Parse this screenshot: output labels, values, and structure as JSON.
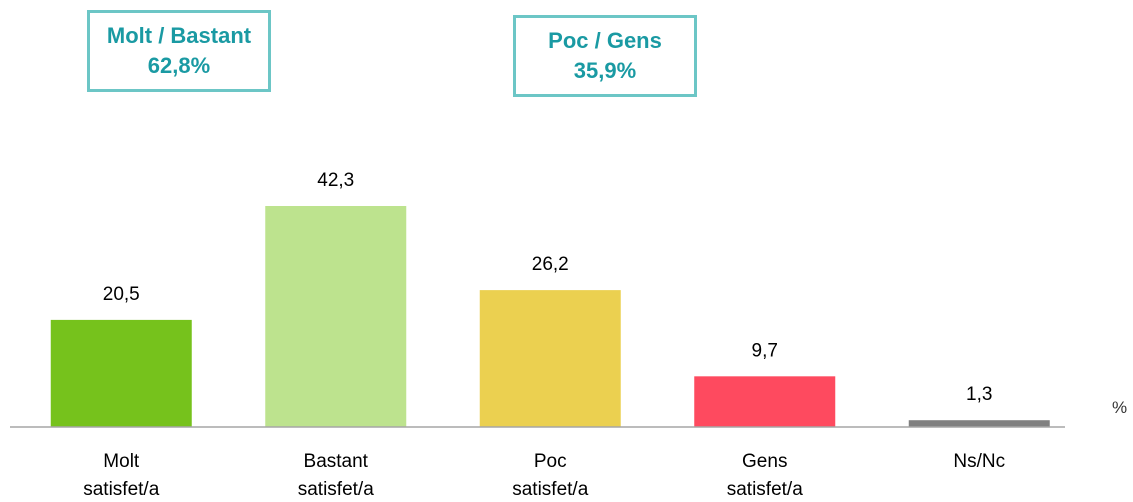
{
  "chart_data": {
    "type": "bar",
    "categories": [
      "Molt satisfet/a",
      "Bastant satisfet/a",
      "Poc satisfet/a",
      "Gens satisfet/a",
      "Ns/Nc"
    ],
    "values": [
      20.5,
      42.3,
      26.2,
      9.7,
      1.3
    ],
    "value_labels": [
      "20,5",
      "42,3",
      "26,2",
      "9,7",
      "1,3"
    ],
    "colors": [
      "#76c21c",
      "#bde38e",
      "#ebd050",
      "#fe4a5f",
      "#808080"
    ],
    "unit_label": "%",
    "annotations": [
      {
        "title": "Molt / Bastant",
        "label": "62,8%"
      },
      {
        "title": "Poc / Gens",
        "label": "35,9%"
      }
    ]
  }
}
